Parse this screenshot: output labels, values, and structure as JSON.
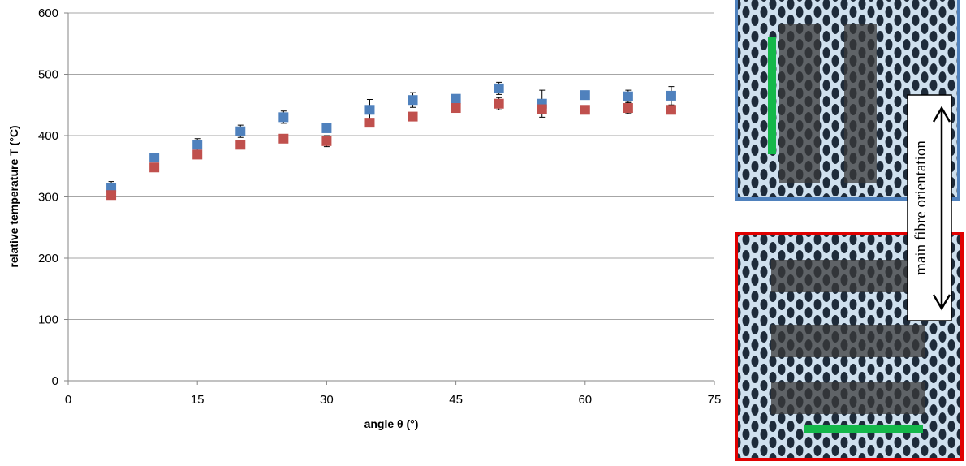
{
  "chart_data": {
    "type": "scatter",
    "x_label": "angle θ (°)",
    "y_label": "relative temperature T (°C)",
    "xlim": [
      0,
      75
    ],
    "xticks": [
      0,
      15,
      30,
      45,
      60,
      75
    ],
    "ylim": [
      0,
      600
    ],
    "yticks": [
      0,
      100,
      200,
      300,
      400,
      500,
      600
    ],
    "grid": true,
    "x": [
      5,
      10,
      15,
      20,
      25,
      30,
      35,
      40,
      45,
      50,
      55,
      60,
      65,
      70
    ],
    "series": [
      {
        "color": "#4f81bd",
        "values": [
          315,
          364,
          385,
          407,
          430,
          412,
          442,
          458,
          460,
          477,
          452,
          466,
          464,
          465
        ],
        "errors": [
          10,
          4,
          10,
          10,
          10,
          5,
          17,
          12,
          4,
          10,
          22,
          3,
          10,
          15
        ]
      },
      {
        "color": "#c0504d",
        "values": [
          303,
          348,
          369,
          385,
          395,
          391,
          421,
          431,
          445,
          452,
          443,
          442,
          445,
          442
        ],
        "errors": [
          3,
          3,
          3,
          3,
          3,
          9,
          3,
          3,
          3,
          10,
          3,
          3,
          9,
          3
        ]
      }
    ],
    "annotation": "main fibre orientation"
  }
}
